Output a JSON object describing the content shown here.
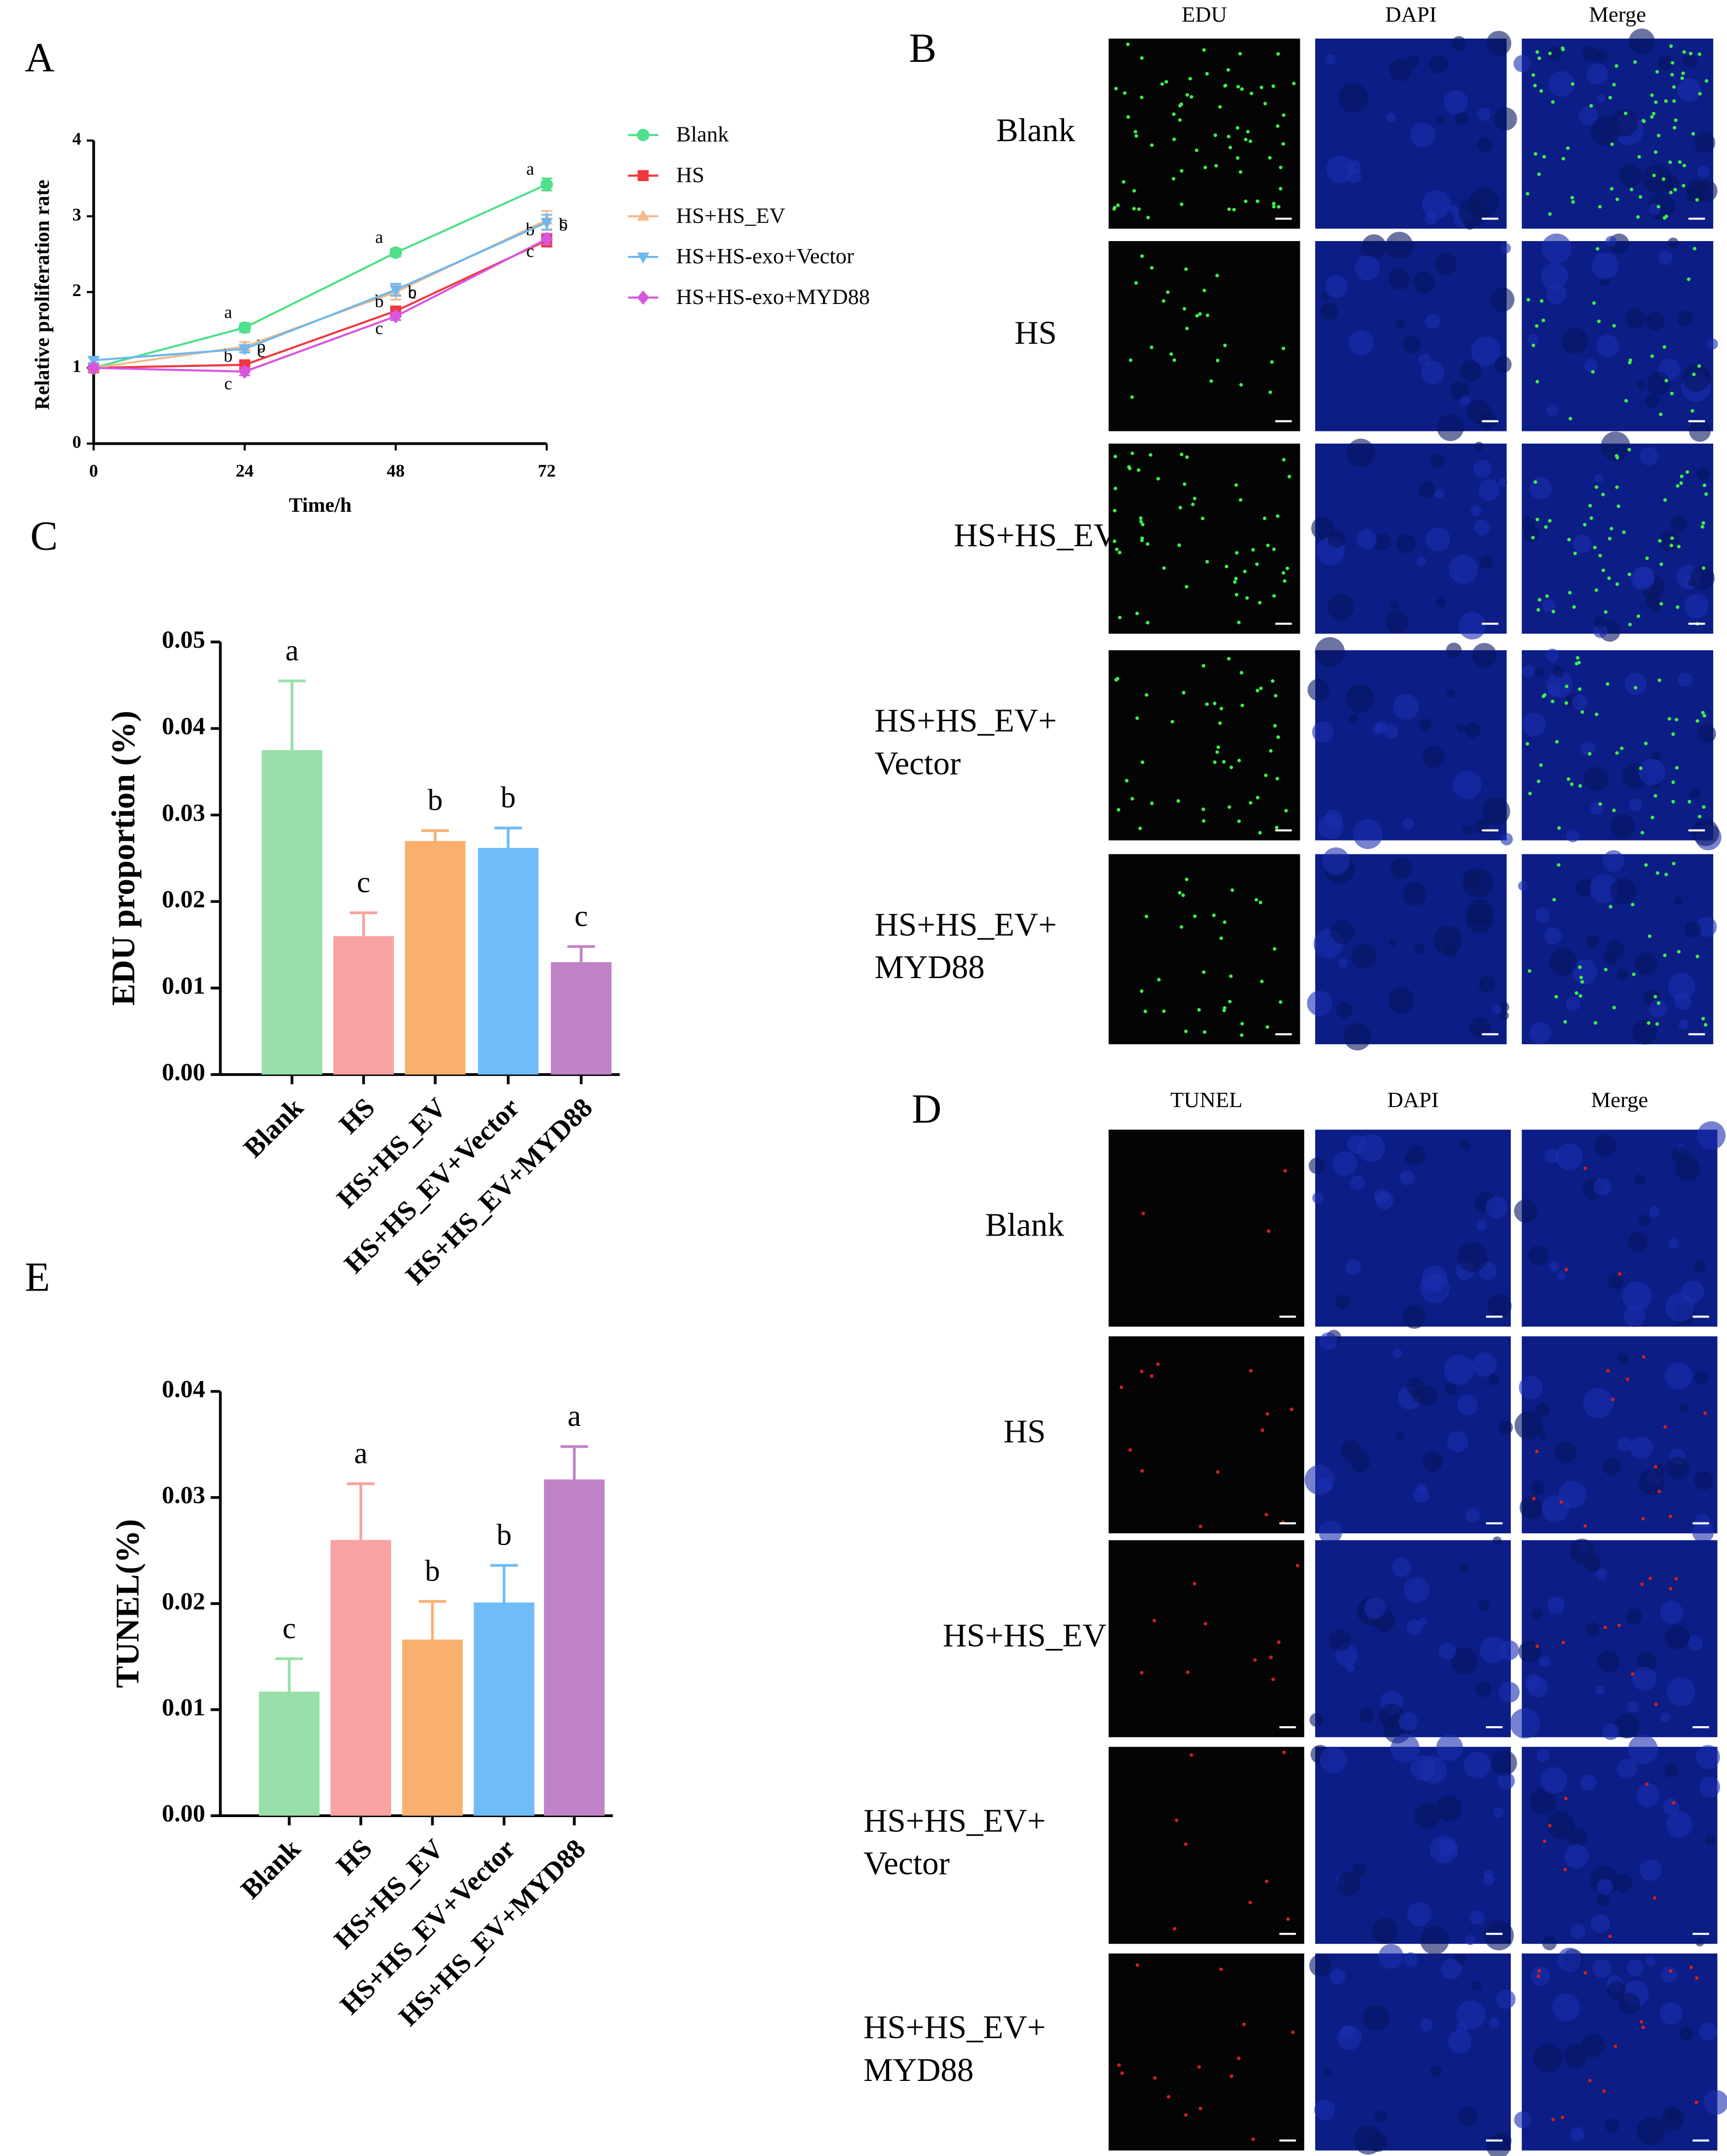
{
  "panel_labels": [
    "A",
    "B",
    "C",
    "D",
    "E"
  ],
  "micrographs": [
    {
      "columns": [
        "EDU",
        "DAPI",
        "Merge"
      ],
      "rows": [
        [
          "Blank"
        ],
        [
          "HS"
        ],
        [
          "HS+HS_EV"
        ],
        [
          "HS+HS_EV+",
          "Vector"
        ],
        [
          "HS+HS_EV+",
          "MYD88"
        ]
      ]
    },
    {
      "columns": [
        "TUNEL",
        "DAPI",
        "Merge"
      ],
      "rows": [
        [
          "Blank"
        ],
        [
          "HS"
        ],
        [
          "HS+HS_EV"
        ],
        [
          "HS+HS_EV+",
          "Vector"
        ],
        [
          "HS+HS_EV+",
          "MYD88"
        ]
      ]
    }
  ],
  "chart_data": [
    {
      "type": "line",
      "x_label": "Time/h",
      "y_label": "Relative proliferation rate",
      "x": [
        0,
        24,
        48,
        72
      ],
      "xlim": [
        0,
        72
      ],
      "xticks": [
        0,
        24,
        48,
        72
      ],
      "ylim": [
        0,
        4
      ],
      "yticks": [
        0,
        1,
        2,
        3,
        4
      ],
      "series": [
        {
          "name": "Blank",
          "color": "#4ee08a",
          "marker": "circle",
          "values": [
            1.0,
            1.53,
            2.52,
            3.42
          ],
          "errors": [
            0.04,
            0.06,
            0.05,
            0.08
          ],
          "letters": [
            null,
            "a",
            "a",
            "a"
          ]
        },
        {
          "name": "HS",
          "color": "#f0373c",
          "marker": "square",
          "values": [
            1.0,
            1.04,
            1.75,
            2.68
          ],
          "errors": [
            0.04,
            0.05,
            0.06,
            0.08
          ],
          "letters": [
            null,
            "b",
            "c",
            "c"
          ]
        },
        {
          "name": "HS+HS_EV",
          "color": "#f5b98a",
          "marker": "triangle",
          "values": [
            1.0,
            1.28,
            2.0,
            2.95
          ],
          "errors": [
            0.04,
            0.06,
            0.1,
            0.12
          ],
          "letters": [
            null,
            "b",
            "b",
            "b"
          ]
        },
        {
          "name": "HS+HS-exo+Vector",
          "color": "#6cb8f0",
          "marker": "triangle-down",
          "values": [
            1.1,
            1.25,
            2.03,
            2.92
          ],
          "errors": [
            0.04,
            0.05,
            0.08,
            0.1
          ],
          "letters": [
            null,
            "c",
            "b",
            "b"
          ]
        },
        {
          "name": "HS+HS-exo+MYD88",
          "color": "#d656e0",
          "marker": "diamond",
          "values": [
            1.0,
            0.95,
            1.68,
            2.7
          ],
          "errors": [
            0.04,
            0.05,
            0.05,
            0.07
          ],
          "letters": [
            null,
            "c",
            "c",
            "c"
          ]
        }
      ]
    },
    {
      "type": "bar",
      "y_label": "EDU proportion (%)",
      "categories": [
        "Blank",
        "HS",
        "HS+HS_EV",
        "HS+HS_EV+Vector",
        "HS+HS_EV+MYD88"
      ],
      "values": [
        0.0375,
        0.016,
        0.027,
        0.0262,
        0.013
      ],
      "errors": [
        0.008,
        0.0027,
        0.0012,
        0.0023,
        0.0018
      ],
      "letters": [
        "a",
        "c",
        "b",
        "b",
        "c"
      ],
      "colors": [
        "#98dfa9",
        "#f9a2a2",
        "#f9b06e",
        "#70bcf8",
        "#c083c7"
      ],
      "ylim": [
        0,
        0.05
      ],
      "yticks": [
        {
          "value": 0,
          "label": "0.00"
        },
        {
          "value": 0.01,
          "label": "0.01"
        },
        {
          "value": 0.02,
          "label": "0.02"
        },
        {
          "value": 0.03,
          "label": "0.03"
        },
        {
          "value": 0.04,
          "label": "0.04"
        },
        {
          "value": 0.05,
          "label": "0.05"
        }
      ]
    },
    {
      "type": "bar",
      "y_label": "TUNEL(%)",
      "categories": [
        "Blank",
        "HS",
        "HS+HS_EV",
        "HS+HS_EV+Vector",
        "HS+HS_EV+MYD88"
      ],
      "values": [
        0.0117,
        0.026,
        0.0166,
        0.0201,
        0.0317
      ],
      "errors": [
        0.0031,
        0.0053,
        0.0036,
        0.0035,
        0.0031
      ],
      "letters": [
        "c",
        "a",
        "b",
        "b",
        "a"
      ],
      "colors": [
        "#98dfa9",
        "#f9a2a2",
        "#f9b06e",
        "#70bcf8",
        "#c083c7"
      ],
      "ylim": [
        0,
        0.04
      ],
      "yticks": [
        {
          "value": 0,
          "label": "0.00"
        },
        {
          "value": 0.01,
          "label": "0.01"
        },
        {
          "value": 0.02,
          "label": "0.02"
        },
        {
          "value": 0.03,
          "label": "0.03"
        },
        {
          "value": 0.04,
          "label": "0.04"
        }
      ]
    }
  ]
}
